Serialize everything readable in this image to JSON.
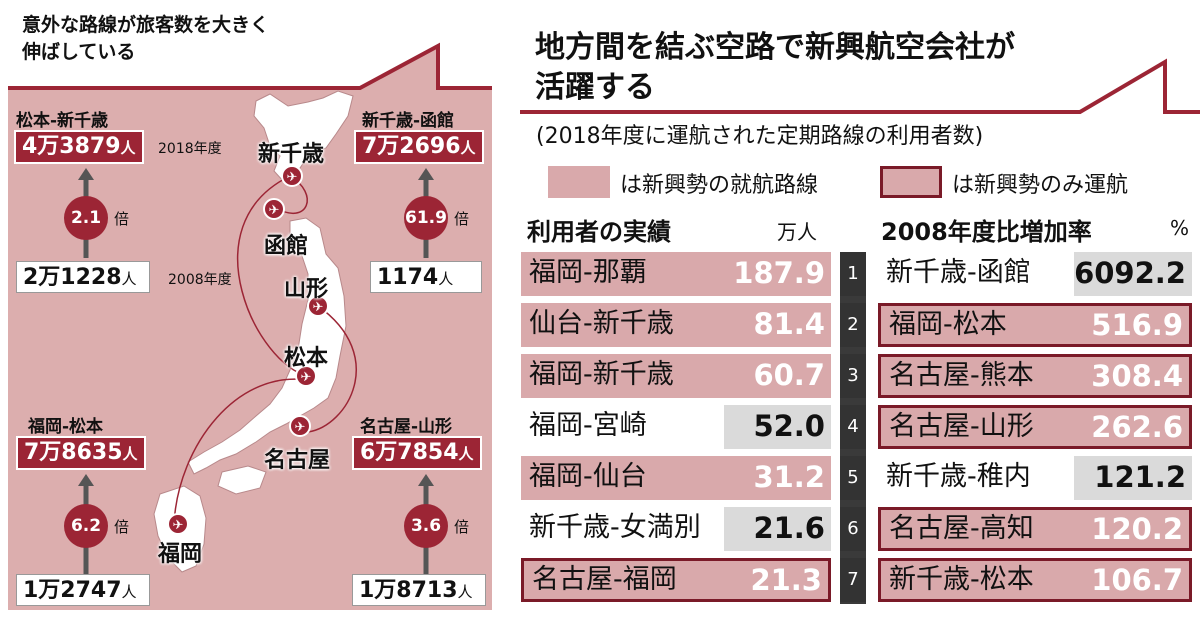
{
  "colors": {
    "accent": "#9c2535",
    "pink_fill": "#d9a9ab",
    "panel_bg": "#dcaeae",
    "value_gray": "#dadada"
  },
  "left": {
    "title_line1": "意外な路線が旅客数を大きく",
    "title_line2": "伸ばしている",
    "year_2018": "2018年度",
    "year_2008": "2008年度",
    "bai": "倍",
    "unit_person": "人",
    "routes": [
      {
        "name": "松本-新千歳",
        "v2018": "4万3879",
        "v2008": "2万1228",
        "ratio": "2.1"
      },
      {
        "name": "新千歳-函館",
        "v2018": "7万2696",
        "v2008": "1174",
        "ratio": "61.9"
      },
      {
        "name": "福岡-松本",
        "v2018": "7万8635",
        "v2008": "1万2747",
        "ratio": "6.2"
      },
      {
        "name": "名古屋-山形",
        "v2018": "6万7854",
        "v2008": "1万8713",
        "ratio": "3.6"
      }
    ],
    "cities": {
      "shin_chitose": "新千歳",
      "hakodate": "函館",
      "yamagata": "山形",
      "matsumoto": "松本",
      "nagoya": "名古屋",
      "fukuoka": "福岡"
    },
    "icons": [
      "airplane-icon",
      "up-arrow-icon"
    ]
  },
  "right": {
    "title_line1": "地方間を結ぶ空路で新興航空会社が",
    "title_line2": "活躍する",
    "subtitle": "(2018年度に運航された定期路線の利用者数)",
    "legend_fill": "は新興勢の就航路線",
    "legend_outline": "は新興勢のみ運航",
    "left_header": "利用者の実績",
    "left_unit": "万人",
    "right_header": "2008年度比増加率",
    "right_unit": "%",
    "ranks": [
      "1",
      "2",
      "3",
      "4",
      "5",
      "6",
      "7"
    ]
  },
  "chart_data": [
    {
      "type": "table",
      "title": "利用者の実績",
      "unit": "万人",
      "rows": [
        {
          "rank": 1,
          "route": "福岡-那覇",
          "value": "187.9",
          "style": "newcomer"
        },
        {
          "rank": 2,
          "route": "仙台-新千歳",
          "value": "81.4",
          "style": "newcomer"
        },
        {
          "rank": 3,
          "route": "福岡-新千歳",
          "value": "60.7",
          "style": "newcomer"
        },
        {
          "rank": 4,
          "route": "福岡-宮崎",
          "value": "52.0",
          "style": "none"
        },
        {
          "rank": 5,
          "route": "福岡-仙台",
          "value": "31.2",
          "style": "newcomer"
        },
        {
          "rank": 6,
          "route": "新千歳-女満別",
          "value": "21.6",
          "style": "none"
        },
        {
          "rank": 7,
          "route": "名古屋-福岡",
          "value": "21.3",
          "style": "newcomer_only"
        }
      ]
    },
    {
      "type": "table",
      "title": "2008年度比増加率",
      "unit": "%",
      "rows": [
        {
          "rank": 1,
          "route": "新千歳-函館",
          "value": "6092.2",
          "style": "none"
        },
        {
          "rank": 2,
          "route": "福岡-松本",
          "value": "516.9",
          "style": "newcomer_only"
        },
        {
          "rank": 3,
          "route": "名古屋-熊本",
          "value": "308.4",
          "style": "newcomer_only"
        },
        {
          "rank": 4,
          "route": "名古屋-山形",
          "value": "262.6",
          "style": "newcomer_only"
        },
        {
          "rank": 5,
          "route": "新千歳-稚内",
          "value": "121.2",
          "style": "none"
        },
        {
          "rank": 6,
          "route": "名古屋-高知",
          "value": "120.2",
          "style": "newcomer_only"
        },
        {
          "rank": 7,
          "route": "新千歳-松本",
          "value": "106.7",
          "style": "newcomer_only"
        }
      ]
    }
  ]
}
